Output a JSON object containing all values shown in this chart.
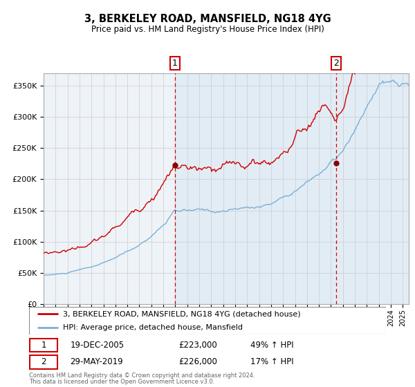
{
  "title": "3, BERKELEY ROAD, MANSFIELD, NG18 4YG",
  "subtitle": "Price paid vs. HM Land Registry's House Price Index (HPI)",
  "legend_line1": "3, BERKELEY ROAD, MANSFIELD, NG18 4YG (detached house)",
  "legend_line2": "HPI: Average price, detached house, Mansfield",
  "footnote1": "Contains HM Land Registry data © Crown copyright and database right 2024.",
  "footnote2": "This data is licensed under the Open Government Licence v3.0.",
  "transaction1_date": "19-DEC-2005",
  "transaction1_price": 223000,
  "transaction1_pct": "49% ↑ HPI",
  "transaction1_year": 2005.96,
  "transaction2_date": "29-MAY-2019",
  "transaction2_price": 226000,
  "transaction2_pct": "17% ↑ HPI",
  "transaction2_year": 2019.41,
  "red_line_color": "#cc0000",
  "blue_line_color": "#7ab0d4",
  "background_color": "#ffffff",
  "chart_bg_color": "#dce9f5",
  "grid_color": "#cccccc",
  "marker_color": "#8b0000",
  "annotation_box_color": "#cc0000",
  "ylim": [
    0,
    370000
  ],
  "xlim_start": 1995.0,
  "xlim_end": 2025.5,
  "red_end_year": 2024.5,
  "blue_end_year": 2025.5
}
